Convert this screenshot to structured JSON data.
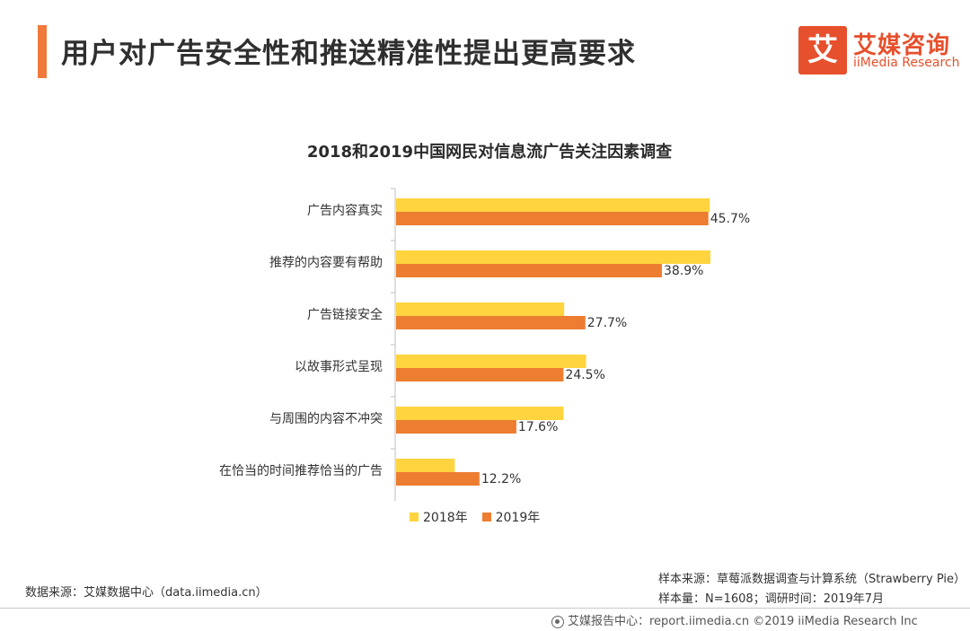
{
  "page": {
    "title": "用户对广告安全性和推送精准性提出更高要求"
  },
  "brand": {
    "mark": "艾",
    "name_cn": "艾媒咨询",
    "name_en": "iiMedia Research"
  },
  "chart_data": {
    "type": "bar",
    "orientation": "horizontal",
    "title": "2018和2019中国网民对信息流广告关注因素调查",
    "categories": [
      "广告内容真实",
      "推荐的内容要有帮助",
      "广告链接安全",
      "以故事形式呈现",
      "与周围的内容不冲突",
      "在恰当的时间推荐恰当的广告"
    ],
    "series": [
      {
        "name": "2018年",
        "color": "#ffd43f",
        "values": [
          45.9,
          46.0,
          24.6,
          27.8,
          24.5,
          8.6
        ]
      },
      {
        "name": "2019年",
        "color": "#ed7d31",
        "values": [
          45.7,
          38.9,
          27.7,
          24.5,
          17.6,
          12.2
        ],
        "labels": [
          "45.7%",
          "38.9%",
          "27.7%",
          "24.5%",
          "17.6%",
          "12.2%"
        ]
      }
    ],
    "grid": false,
    "legend": "bottom",
    "xlim": [
      0,
      60
    ]
  },
  "sources": {
    "left": "数据来源：艾媒数据中心（data.iimedia.cn）",
    "right_line1": "样本来源：草莓派数据调查与计算系统（Strawberry Pie）",
    "right_line2": "样本量：N=1608；调研时间：2019年7月"
  },
  "footer": {
    "text": "艾媒报告中心：report.iimedia.cn  ©2019  iiMedia Research Inc"
  }
}
